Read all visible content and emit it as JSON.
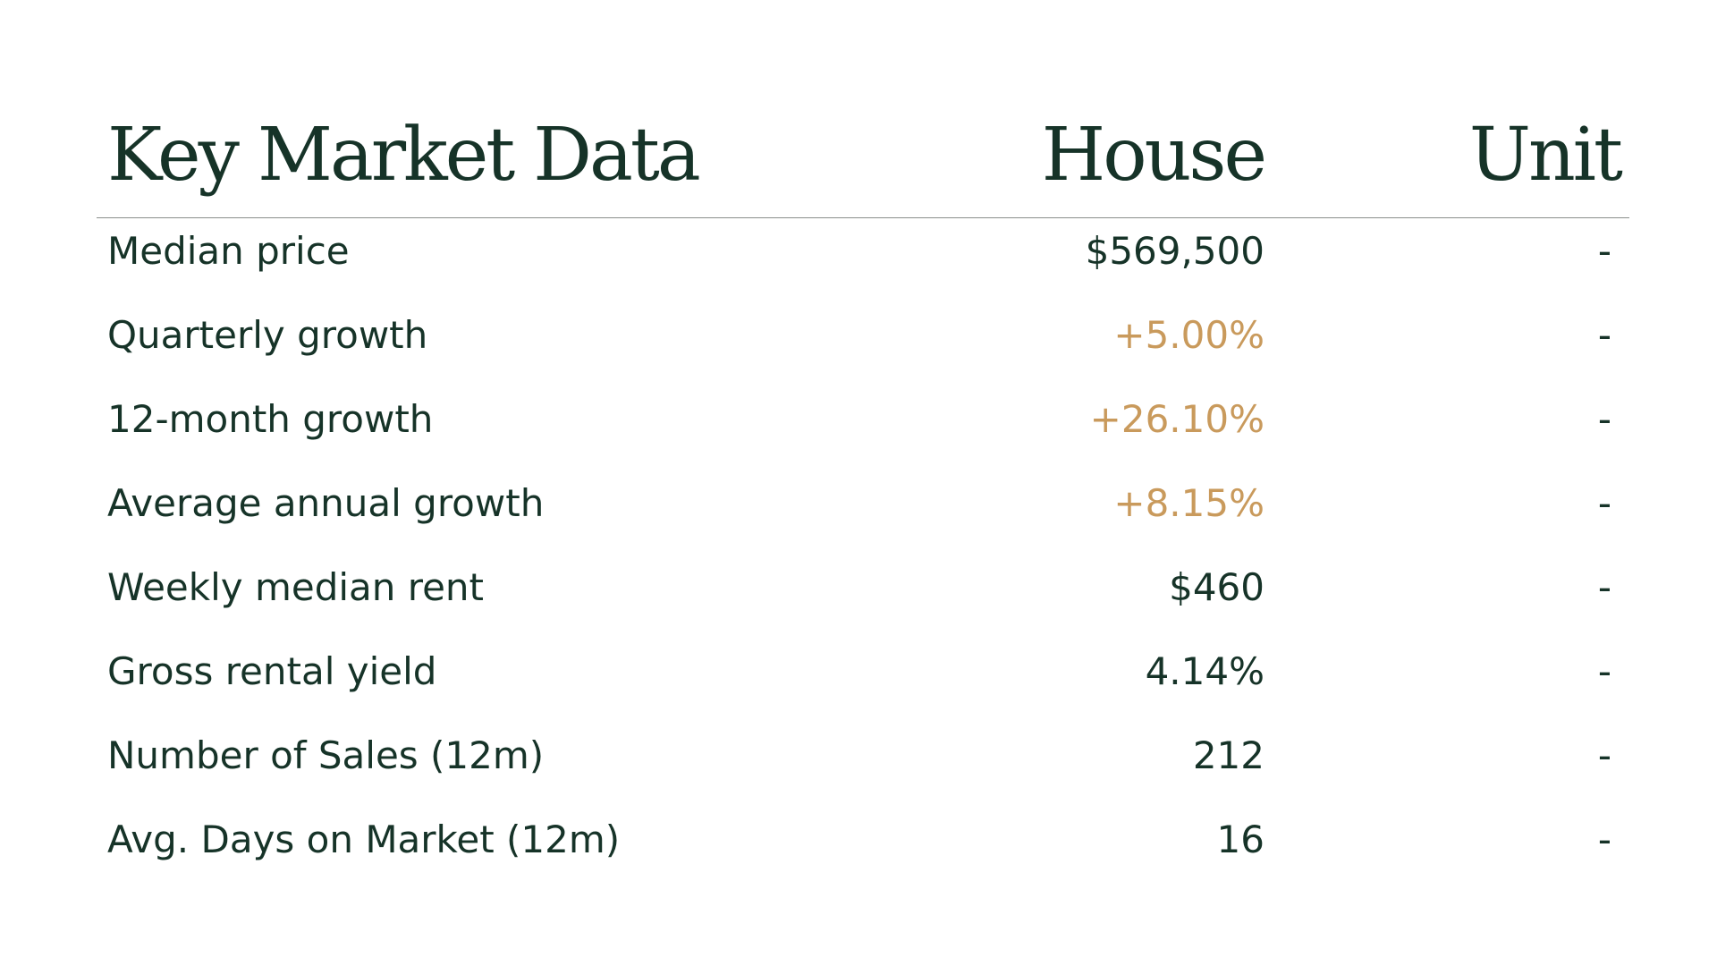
{
  "table": {
    "headers": {
      "title": "Key Market Data",
      "house": "House",
      "unit": "Unit"
    },
    "rows": [
      {
        "label": "Median price",
        "house": "$569,500",
        "unit": "-",
        "accent": false
      },
      {
        "label": "Quarterly growth",
        "house": "+5.00%",
        "unit": "-",
        "accent": true
      },
      {
        "label": "12-month growth",
        "house": "+26.10%",
        "unit": "-",
        "accent": true
      },
      {
        "label": "Average annual growth",
        "house": "+8.15%",
        "unit": "-",
        "accent": true
      },
      {
        "label": "Weekly median rent",
        "house": "$460",
        "unit": "-",
        "accent": false
      },
      {
        "label": "Gross rental yield",
        "house": "4.14%",
        "unit": "-",
        "accent": false
      },
      {
        "label": "Number of Sales (12m)",
        "house": "212",
        "unit": "-",
        "accent": false
      },
      {
        "label": "Avg. Days on Market (12m)",
        "house": "16",
        "unit": "-",
        "accent": false
      }
    ]
  },
  "colors": {
    "text": "#163328",
    "accent": "#c99a5c",
    "rule": "#8a8f8c",
    "background": "#ffffff"
  }
}
